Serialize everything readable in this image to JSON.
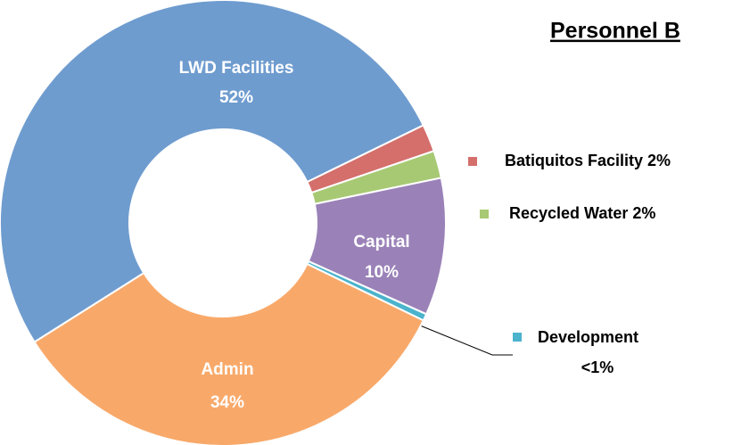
{
  "chart_data": {
    "type": "donut",
    "title": "Personnel B",
    "categories": [
      "Batiquitos Facility",
      "Recycled Water",
      "Capital",
      "Development",
      "Admin",
      "LWD Facilities"
    ],
    "values": [
      2,
      2,
      10,
      0.5,
      34,
      52
    ],
    "value_labels": [
      "2%",
      "2%",
      "10%",
      "<1%",
      "34%",
      "52%"
    ],
    "colors": [
      "#d46f6c",
      "#a7c973",
      "#9a82b8",
      "#4bb3cc",
      "#f8a96a",
      "#6f9ccf"
    ]
  }
}
